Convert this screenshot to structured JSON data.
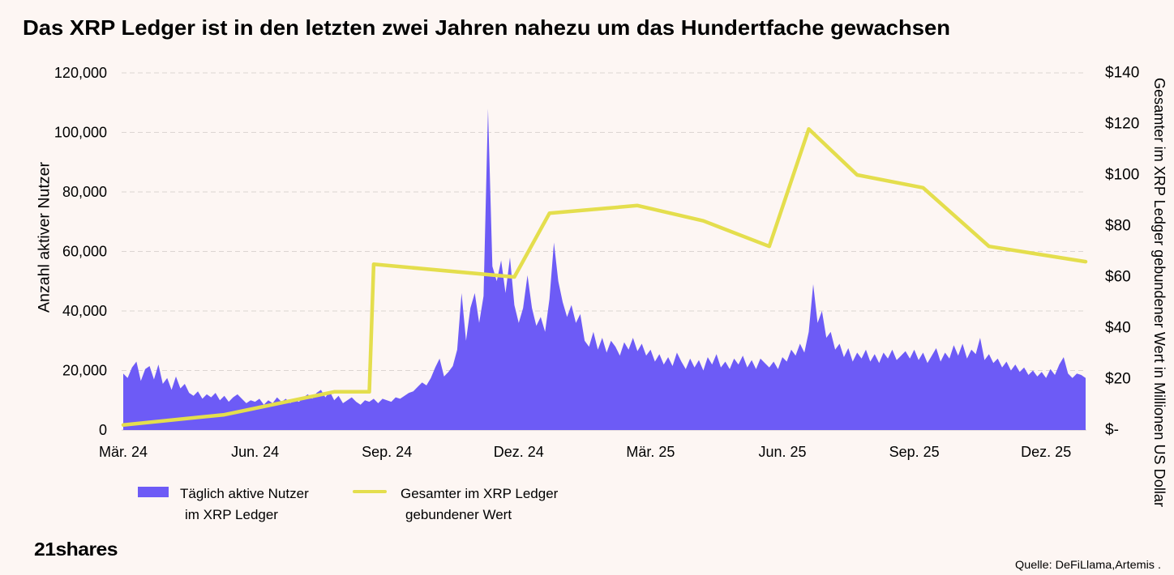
{
  "chart_data": {
    "type": "area",
    "title": "Das XRP Ledger ist in den letzten zwei Jahren nahezu um das Hundertfache gewachsen",
    "xlabel": "",
    "ylabel": "Anzahl aktiver Nutzer",
    "y2label": "Gesamter im XRP Ledger gebundener Wert in Millionen US Dollar",
    "xlim": [
      0,
      21.9
    ],
    "ylim": [
      0,
      120000
    ],
    "y2lim": [
      0,
      140
    ],
    "grid": true,
    "legend_position": "bottom-left",
    "x_ticks": [
      {
        "value": 0,
        "label": "Mär. 24"
      },
      {
        "value": 3,
        "label": "Jun. 24"
      },
      {
        "value": 6,
        "label": "Sep. 24"
      },
      {
        "value": 9,
        "label": "Dez. 24"
      },
      {
        "value": 12,
        "label": "Mär. 25"
      },
      {
        "value": 15,
        "label": "Jun. 25"
      },
      {
        "value": 18,
        "label": "Sep. 25"
      },
      {
        "value": 21,
        "label": "Dez. 25"
      }
    ],
    "y_ticks": [
      {
        "value": 0,
        "label": "0"
      },
      {
        "value": 20000,
        "label": "20,000"
      },
      {
        "value": 40000,
        "label": "40,000"
      },
      {
        "value": 60000,
        "label": "60,000"
      },
      {
        "value": 80000,
        "label": "80,000"
      },
      {
        "value": 100000,
        "label": "100,000"
      },
      {
        "value": 120000,
        "label": "120,000"
      }
    ],
    "y2_ticks": [
      {
        "value": 0,
        "label": "$-"
      },
      {
        "value": 20,
        "label": "$20"
      },
      {
        "value": 40,
        "label": "$40"
      },
      {
        "value": 60,
        "label": "$60"
      },
      {
        "value": 80,
        "label": "$80"
      },
      {
        "value": 100,
        "label": "$100"
      },
      {
        "value": 120,
        "label": "$120"
      },
      {
        "value": 140,
        "label": "$140"
      }
    ],
    "series": [
      {
        "name_lines": [
          "Täglich aktive Nutzer",
          "im XRP Ledger"
        ],
        "type": "area",
        "axis": "left",
        "color": "#6d5bf6",
        "x_start": 0,
        "x_step": 0.1,
        "values": [
          19000,
          17500,
          21000,
          23000,
          16500,
          20500,
          21500,
          17000,
          22000,
          15500,
          17500,
          13500,
          18000,
          14000,
          15500,
          12500,
          11500,
          13000,
          10500,
          12000,
          11000,
          12500,
          10000,
          11500,
          9500,
          11000,
          12000,
          10500,
          9000,
          10000,
          9500,
          10500,
          8500,
          10000,
          9000,
          11000,
          9500,
          10500,
          9000,
          10000,
          9500,
          11000,
          12000,
          10500,
          12500,
          13500,
          11000,
          13000,
          10000,
          11500,
          9000,
          10000,
          11000,
          9500,
          8500,
          10000,
          9500,
          10500,
          9000,
          10500,
          10000,
          9500,
          11000,
          10500,
          11500,
          12500,
          13000,
          14500,
          16000,
          15000,
          17500,
          21000,
          24000,
          18000,
          19500,
          21500,
          27000,
          46000,
          30000,
          41000,
          46000,
          36000,
          45000,
          108000,
          55000,
          50000,
          57000,
          46000,
          58000,
          42000,
          36000,
          41000,
          52000,
          41000,
          35000,
          38000,
          33000,
          44000,
          63000,
          50000,
          43000,
          38000,
          42000,
          36000,
          39000,
          30000,
          28000,
          33000,
          27000,
          31000,
          26000,
          30000,
          28000,
          25000,
          29500,
          27000,
          31000,
          26500,
          29000,
          25000,
          27000,
          23000,
          25500,
          22000,
          24500,
          21500,
          26000,
          23000,
          20500,
          24000,
          21000,
          23500,
          20000,
          24500,
          22000,
          25500,
          21000,
          23000,
          20500,
          24000,
          22000,
          25000,
          21000,
          23500,
          20500,
          24000,
          22500,
          21000,
          23000,
          20500,
          24500,
          23000,
          27000,
          25000,
          29000,
          26000,
          33000,
          49000,
          36000,
          40000,
          31000,
          33000,
          27000,
          29000,
          24500,
          27500,
          23000,
          26000,
          24000,
          27000,
          23000,
          25500,
          22500,
          26000,
          24000,
          27000,
          23500,
          25000,
          26500,
          24000,
          27000,
          23500,
          26000,
          22500,
          25000,
          27500,
          23000,
          26000,
          24000,
          28500,
          25000,
          29000,
          24000,
          27000,
          25500,
          31000,
          23500,
          25500,
          22500,
          24000,
          21000,
          23000,
          20000,
          22000,
          19500,
          21000,
          18500,
          20000,
          18000,
          19500,
          17500,
          20500,
          18500,
          22000,
          24500,
          19000,
          17500,
          19000,
          18500,
          17500
        ]
      },
      {
        "name_lines": [
          "Gesamter im XRP Ledger",
          "gebundener Wert"
        ],
        "type": "line",
        "axis": "right",
        "color": "#e4de4d",
        "x": [
          0,
          2.3,
          4.8,
          5.6,
          5.7,
          8.9,
          9.7,
          11.7,
          13.2,
          14.7,
          15.6,
          16.7,
          18.2,
          19.7,
          21.9
        ],
        "values": [
          2,
          6,
          15,
          15,
          65,
          60,
          85,
          88,
          82,
          72,
          118,
          100,
          95,
          72,
          66
        ]
      }
    ]
  },
  "branding": {
    "logo": "21shares"
  },
  "footer": {
    "source": "Quelle: DeFiLlama,Artemis ."
  },
  "colors": {
    "background": "#fdf6f3"
  }
}
